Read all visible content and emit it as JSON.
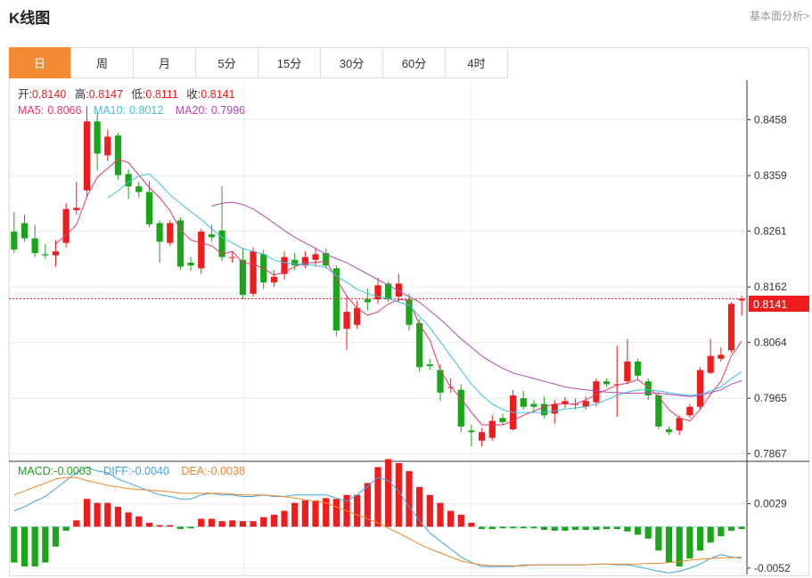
{
  "header": {
    "title": "K线图",
    "link": "基本面分析>"
  },
  "tabs": [
    "日",
    "周",
    "月",
    "5分",
    "15分",
    "30分",
    "60分",
    "4时"
  ],
  "active_tab": 0,
  "ohlc_info": {
    "open_label": "开:",
    "open": "0.8140",
    "high_label": "高:",
    "high": "0.8147",
    "low_label": "低:",
    "low": "0.8111",
    "close_label": "收:",
    "close": "0.8141"
  },
  "ma_info": {
    "ma5_label": "MA5:",
    "ma5": "0.8066",
    "ma10_label": "MA10:",
    "ma10": "0.8012",
    "ma20_label": "MA20:",
    "ma20": "0.7996"
  },
  "macd_info": {
    "macd_label": "MACD:",
    "macd": "-0.0003",
    "diff_label": "DIFF:",
    "diff": "-0.0040",
    "dea_label": "DEA:",
    "dea": "-0.0038"
  },
  "current_price": "0.8141",
  "colors": {
    "up": "#ee1c1c",
    "down": "#1aa51a",
    "ma5": "#e8356b",
    "ma10": "#3fbfdf",
    "ma20": "#b246b8",
    "diff": "#3fa2e6",
    "dea": "#f0862a",
    "active_tab": "#f58a35",
    "price_line": "#ee1c1c"
  },
  "chart_data": [
    {
      "type": "candlestick",
      "y_ticks": [
        "0.8458",
        "0.8359",
        "0.8261",
        "0.8162",
        "0.8064",
        "0.7965",
        "0.7867"
      ],
      "ylim": [
        0.7855,
        0.8528
      ],
      "grid": true,
      "candles": [
        [
          0.826,
          0.8228,
          0.8295,
          0.8222
        ],
        [
          0.8275,
          0.8248,
          0.829,
          0.8242
        ],
        [
          0.8248,
          0.8222,
          0.8272,
          0.8215
        ],
        [
          0.822,
          0.8218,
          0.8238,
          0.8212
        ],
        [
          0.8218,
          0.8225,
          0.8245,
          0.8198
        ],
        [
          0.824,
          0.83,
          0.831,
          0.8232
        ],
        [
          0.8298,
          0.8302,
          0.8348,
          0.829
        ],
        [
          0.8333,
          0.8455,
          0.8482,
          0.832
        ],
        [
          0.8455,
          0.8398,
          0.847,
          0.8368
        ],
        [
          0.8395,
          0.8428,
          0.844,
          0.8385
        ],
        [
          0.843,
          0.836,
          0.8435,
          0.8352
        ],
        [
          0.8362,
          0.834,
          0.837,
          0.8318
        ],
        [
          0.834,
          0.833,
          0.8348,
          0.832
        ],
        [
          0.833,
          0.8273,
          0.835,
          0.8268
        ],
        [
          0.8275,
          0.8242,
          0.828,
          0.8205
        ],
        [
          0.824,
          0.8275,
          0.828,
          0.8235
        ],
        [
          0.828,
          0.8198,
          0.8285,
          0.8192
        ],
        [
          0.8205,
          0.82,
          0.8215,
          0.819
        ],
        [
          0.8195,
          0.826,
          0.8265,
          0.8185
        ],
        [
          0.8255,
          0.825,
          0.8272,
          0.8242
        ],
        [
          0.8262,
          0.8215,
          0.834,
          0.8208
        ],
        [
          0.8215,
          0.8215,
          0.8225,
          0.8205
        ],
        [
          0.821,
          0.8148,
          0.823,
          0.814
        ],
        [
          0.815,
          0.8225,
          0.8232,
          0.8145
        ],
        [
          0.822,
          0.817,
          0.8228,
          0.8158
        ],
        [
          0.817,
          0.818,
          0.8192,
          0.8162
        ],
        [
          0.8185,
          0.8215,
          0.8225,
          0.8175
        ],
        [
          0.821,
          0.82,
          0.8222,
          0.8192
        ],
        [
          0.82,
          0.8215,
          0.8225,
          0.8195
        ],
        [
          0.821,
          0.822,
          0.8232,
          0.8198
        ],
        [
          0.8222,
          0.82,
          0.823,
          0.8195
        ],
        [
          0.8195,
          0.8085,
          0.82,
          0.8075
        ],
        [
          0.8088,
          0.8118,
          0.8148,
          0.805
        ],
        [
          0.8095,
          0.8125,
          0.8138,
          0.8088
        ],
        [
          0.814,
          0.8135,
          0.816,
          0.812
        ],
        [
          0.814,
          0.8165,
          0.8178,
          0.8132
        ],
        [
          0.8168,
          0.814,
          0.8172,
          0.8135
        ],
        [
          0.8145,
          0.8168,
          0.8185,
          0.8135
        ],
        [
          0.814,
          0.8095,
          0.815,
          0.8085
        ],
        [
          0.8098,
          0.802,
          0.8105,
          0.8012
        ],
        [
          0.8025,
          0.8022,
          0.8035,
          0.8015
        ],
        [
          0.8015,
          0.7975,
          0.8025,
          0.796
        ],
        [
          0.7985,
          0.7985,
          0.8,
          0.7975
        ],
        [
          0.798,
          0.7915,
          0.799,
          0.7905
        ],
        [
          0.7908,
          0.7905,
          0.7918,
          0.788
        ],
        [
          0.789,
          0.7905,
          0.7912,
          0.788
        ],
        [
          0.7895,
          0.7925,
          0.7935,
          0.789
        ],
        [
          0.793,
          0.7923,
          0.7938,
          0.7918
        ],
        [
          0.791,
          0.797,
          0.798,
          0.7908
        ],
        [
          0.7965,
          0.795,
          0.7978,
          0.7945
        ],
        [
          0.7955,
          0.795,
          0.7962,
          0.794
        ],
        [
          0.7955,
          0.7935,
          0.7968,
          0.793
        ],
        [
          0.7938,
          0.7955,
          0.7962,
          0.792
        ],
        [
          0.7955,
          0.796,
          0.7968,
          0.7948
        ],
        [
          0.7955,
          0.7955,
          0.7965,
          0.7945
        ],
        [
          0.795,
          0.796,
          0.7968,
          0.7945
        ],
        [
          0.7958,
          0.7995,
          0.8,
          0.795
        ],
        [
          0.7995,
          0.799,
          0.8,
          0.7985
        ],
        [
          0.799,
          0.799,
          0.8058,
          0.7932
        ],
        [
          0.7995,
          0.803,
          0.807,
          0.799
        ],
        [
          0.803,
          0.8005,
          0.8035,
          0.7998
        ],
        [
          0.7995,
          0.797,
          0.8,
          0.7962
        ],
        [
          0.797,
          0.7915,
          0.7975,
          0.791
        ],
        [
          0.791,
          0.7905,
          0.7915,
          0.79
        ],
        [
          0.7908,
          0.793,
          0.7935,
          0.79
        ],
        [
          0.7935,
          0.795,
          0.7955,
          0.793
        ],
        [
          0.795,
          0.8015,
          0.802,
          0.7945
        ],
        [
          0.801,
          0.804,
          0.807,
          0.8008
        ],
        [
          0.8035,
          0.8042,
          0.8055,
          0.803
        ],
        [
          0.805,
          0.8132,
          0.8135,
          0.8045
        ],
        [
          0.8138,
          0.8141,
          0.8147,
          0.8111
        ]
      ],
      "ma5": [
        null,
        null,
        null,
        null,
        0.8238,
        0.8254,
        0.8272,
        0.8322,
        0.8356,
        0.8372,
        0.8388,
        0.8382,
        0.836,
        0.8338,
        0.832,
        0.8297,
        0.8263,
        0.8245,
        0.824,
        0.8235,
        0.822,
        0.8225,
        0.8205,
        0.8202,
        0.8195,
        0.8183,
        0.8188,
        0.8198,
        0.8205,
        0.8205,
        0.8208,
        0.8176,
        0.8146,
        0.8124,
        0.8112,
        0.8118,
        0.8132,
        0.814,
        0.8138,
        0.8095,
        0.8068,
        0.8015,
        0.7985,
        0.7965,
        0.794,
        0.7918,
        0.7918,
        0.7918,
        0.7925,
        0.7935,
        0.7942,
        0.795,
        0.7955,
        0.7955,
        0.7955,
        0.7962,
        0.7972,
        0.798,
        0.7988,
        0.7992,
        0.7998,
        0.7985,
        0.7968,
        0.7945,
        0.793,
        0.7925,
        0.7945,
        0.7972,
        0.7995,
        0.804,
        0.8066
      ],
      "ma10": [
        null,
        null,
        null,
        null,
        null,
        null,
        null,
        null,
        null,
        0.832,
        0.8332,
        0.8348,
        0.8358,
        0.8362,
        0.8345,
        0.8325,
        0.831,
        0.8295,
        0.8282,
        0.8265,
        0.825,
        0.824,
        0.823,
        0.8225,
        0.822,
        0.821,
        0.8205,
        0.8203,
        0.8202,
        0.82,
        0.8197,
        0.8182,
        0.817,
        0.8158,
        0.815,
        0.8145,
        0.8142,
        0.8135,
        0.813,
        0.811,
        0.809,
        0.8065,
        0.804,
        0.8015,
        0.799,
        0.797,
        0.7955,
        0.7945,
        0.794,
        0.794,
        0.794,
        0.794,
        0.7943,
        0.7946,
        0.7948,
        0.795,
        0.7955,
        0.7962,
        0.797,
        0.7976,
        0.798,
        0.798,
        0.7978,
        0.7975,
        0.7972,
        0.797,
        0.7972,
        0.7978,
        0.7985,
        0.8,
        0.8012
      ],
      "ma20": [
        null,
        null,
        null,
        null,
        null,
        null,
        null,
        null,
        null,
        null,
        null,
        null,
        null,
        null,
        null,
        null,
        null,
        null,
        null,
        0.8305,
        0.831,
        0.8312,
        0.8308,
        0.83,
        0.8288,
        0.8275,
        0.8262,
        0.825,
        0.824,
        0.823,
        0.822,
        0.8212,
        0.8205,
        0.8195,
        0.8185,
        0.8175,
        0.8165,
        0.8155,
        0.8145,
        0.8135,
        0.812,
        0.8105,
        0.8088,
        0.807,
        0.8055,
        0.804,
        0.8028,
        0.8018,
        0.801,
        0.8005,
        0.8,
        0.7995,
        0.799,
        0.7985,
        0.7982,
        0.798,
        0.7978,
        0.7976,
        0.7975,
        0.7974,
        0.7974,
        0.7975,
        0.7974,
        0.7972,
        0.797,
        0.7968,
        0.797,
        0.7975,
        0.798,
        0.799,
        0.7996
      ]
    },
    {
      "type": "macd",
      "y_ticks": [
        "0.0029",
        "-0.0052"
      ],
      "ylim": [
        -0.006,
        0.008
      ],
      "macd": [
        -0.0045,
        -0.005,
        -0.005,
        -0.0045,
        -0.0025,
        -0.0005,
        0.0008,
        0.0035,
        0.003,
        0.003,
        0.0025,
        0.0018,
        0.0013,
        0.0005,
        0.0002,
        0.0002,
        -0.0003,
        -0.0002,
        0.001,
        0.001,
        0.0007,
        0.0008,
        0.0007,
        0.0007,
        0.0012,
        0.0015,
        0.002,
        0.003,
        0.0033,
        0.0033,
        0.0036,
        0.0035,
        0.004,
        0.004,
        0.0055,
        0.0075,
        0.0085,
        0.008,
        0.007,
        0.005,
        0.004,
        0.003,
        0.002,
        0.0015,
        0.0005,
        -0.0003,
        -0.0003,
        -0.0002,
        -0.0002,
        -0.0002,
        -0.0002,
        -0.0004,
        -0.0005,
        -0.0005,
        -0.0004,
        -0.0004,
        -0.0004,
        -0.0003,
        -0.0003,
        -0.0006,
        -0.001,
        -0.0015,
        -0.003,
        -0.0045,
        -0.005,
        -0.004,
        -0.003,
        -0.002,
        -0.0012,
        -0.0005,
        -0.0003
      ],
      "diff": [
        0.002,
        0.0025,
        0.0032,
        0.0038,
        0.0048,
        0.0058,
        0.0068,
        0.0075,
        0.007,
        0.0068,
        0.006,
        0.0055,
        0.005,
        0.0045,
        0.004,
        0.0038,
        0.0035,
        0.0035,
        0.004,
        0.0042,
        0.004,
        0.004,
        0.0038,
        0.0038,
        0.004,
        0.0038,
        0.0038,
        0.004,
        0.004,
        0.004,
        0.004,
        0.0036,
        0.0032,
        0.004,
        0.005,
        0.0062,
        0.0058,
        0.0045,
        0.0025,
        0.0008,
        -0.0008,
        -0.0018,
        -0.0028,
        -0.0038,
        -0.0045,
        -0.005,
        -0.005,
        -0.005,
        -0.005,
        -0.0048,
        -0.0048,
        -0.0048,
        -0.0048,
        -0.0048,
        -0.0048,
        -0.0048,
        -0.0047,
        -0.0047,
        -0.0048,
        -0.0048,
        -0.005,
        -0.0053,
        -0.0056,
        -0.0058,
        -0.0056,
        -0.0052,
        -0.0047,
        -0.004,
        -0.0035,
        -0.0038,
        -0.004
      ],
      "dea": [
        0.004,
        0.0045,
        0.005,
        0.0055,
        0.006,
        0.0062,
        0.0062,
        0.0058,
        0.0055,
        0.0052,
        0.005,
        0.0048,
        0.0047,
        0.0046,
        0.0045,
        0.0044,
        0.0042,
        0.0042,
        0.0042,
        0.0042,
        0.0042,
        0.0041,
        0.004,
        0.004,
        0.004,
        0.0039,
        0.0038,
        0.0036,
        0.0034,
        0.0032,
        0.003,
        0.0025,
        0.002,
        0.0015,
        0.001,
        0.0005,
        -0.0002,
        -0.0008,
        -0.0015,
        -0.0022,
        -0.0028,
        -0.0033,
        -0.0038,
        -0.0043,
        -0.0046,
        -0.0048,
        -0.0049,
        -0.0049,
        -0.0049,
        -0.0049,
        -0.0048,
        -0.0048,
        -0.0048,
        -0.0048,
        -0.0048,
        -0.0048,
        -0.0047,
        -0.0047,
        -0.0047,
        -0.0047,
        -0.0047,
        -0.0046,
        -0.0046,
        -0.0045,
        -0.0044,
        -0.0042,
        -0.0041,
        -0.004,
        -0.0039,
        -0.0039,
        -0.0038
      ]
    }
  ]
}
